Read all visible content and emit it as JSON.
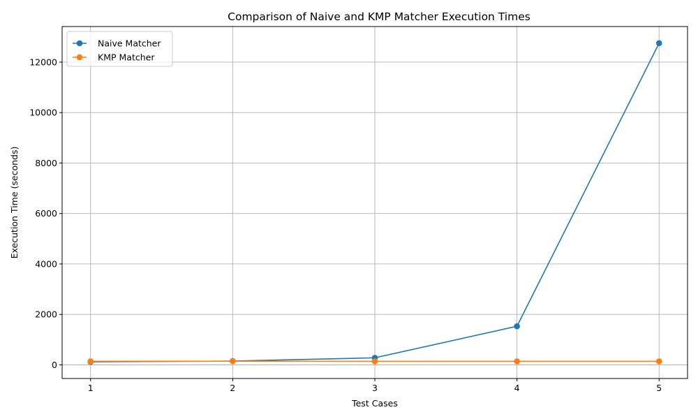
{
  "chart_data": {
    "type": "line",
    "title": "Comparison of Naive and KMP Matcher Execution Times",
    "xlabel": "Test Cases",
    "ylabel": "Execution Time (seconds)",
    "x": [
      1,
      2,
      3,
      4,
      5
    ],
    "xlim": [
      0.8,
      5.2
    ],
    "ylim": [
      -540,
      13410
    ],
    "yticks": [
      0,
      2000,
      4000,
      6000,
      8000,
      10000,
      12000
    ],
    "grid": true,
    "legend_position": "top-left",
    "series": [
      {
        "name": "Naive Matcher",
        "color": "#1f77b4",
        "marker": "circle",
        "values": [
          120,
          150,
          280,
          1530,
          12750
        ]
      },
      {
        "name": "KMP Matcher",
        "color": "#ff7f0e",
        "marker": "circle",
        "values": [
          140,
          145,
          140,
          140,
          140
        ]
      }
    ]
  }
}
